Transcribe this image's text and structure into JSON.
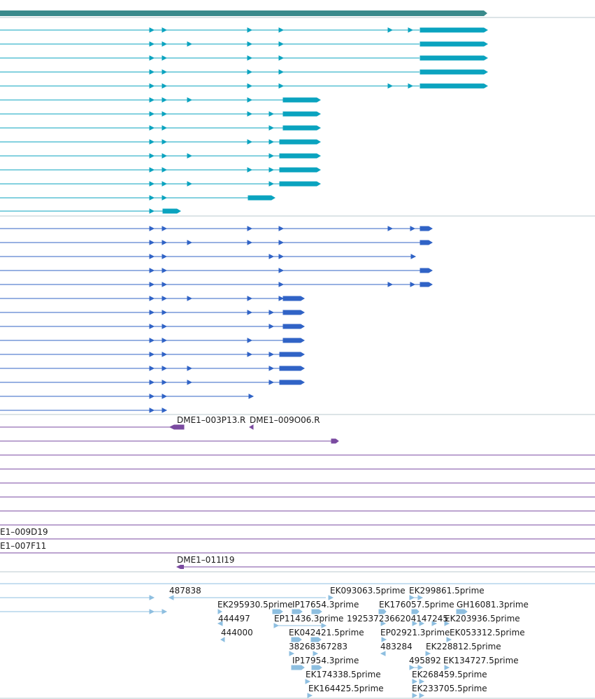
{
  "colors": {
    "background": "#ffffff",
    "separator": "#b9c9cf",
    "gene_track": "#3a8a8c",
    "transcripts_track_a": "#0aa3bf",
    "transcripts_track_b": "#3063c6",
    "clone_track": "#7a4aa0",
    "est_track": "#8ebfe0"
  },
  "labels": {
    "clone_a": "DME1–003P13.R",
    "clone_b": "DME1–009O06.R",
    "clone_c": "E1–009D19",
    "clone_d": "E1–007F11",
    "clone_e": "DME1–011I19",
    "est_1": "487838",
    "est_2": "EK093063.5prime",
    "est_3": "EK299861.5prime",
    "est_4": "EK295930.5prime",
    "est_5": "IP17654.3prime",
    "est_6": "EK176057.5prime",
    "est_7": "GH16081.3prime",
    "est_8": "444497",
    "est_9": "EP11436.3prime",
    "est_10": "1925372366204147245",
    "est_11": "EK203936.5prime",
    "est_12": "444000",
    "est_13": "EK042421.5prime",
    "est_14": "EP02921.3prime",
    "est_15": "EK053312.5prime",
    "est_16": "38268367283",
    "est_17": "483284",
    "est_18": "EK228812.5prime",
    "est_19": "IP17954.3prime",
    "est_20": "495892",
    "est_21": "EK134727.5prime",
    "est_22": "EK174338.5prime",
    "est_23": "EK268459.5prime",
    "est_24": "EK164425.5prime",
    "est_25": "EK233705.5prime"
  }
}
